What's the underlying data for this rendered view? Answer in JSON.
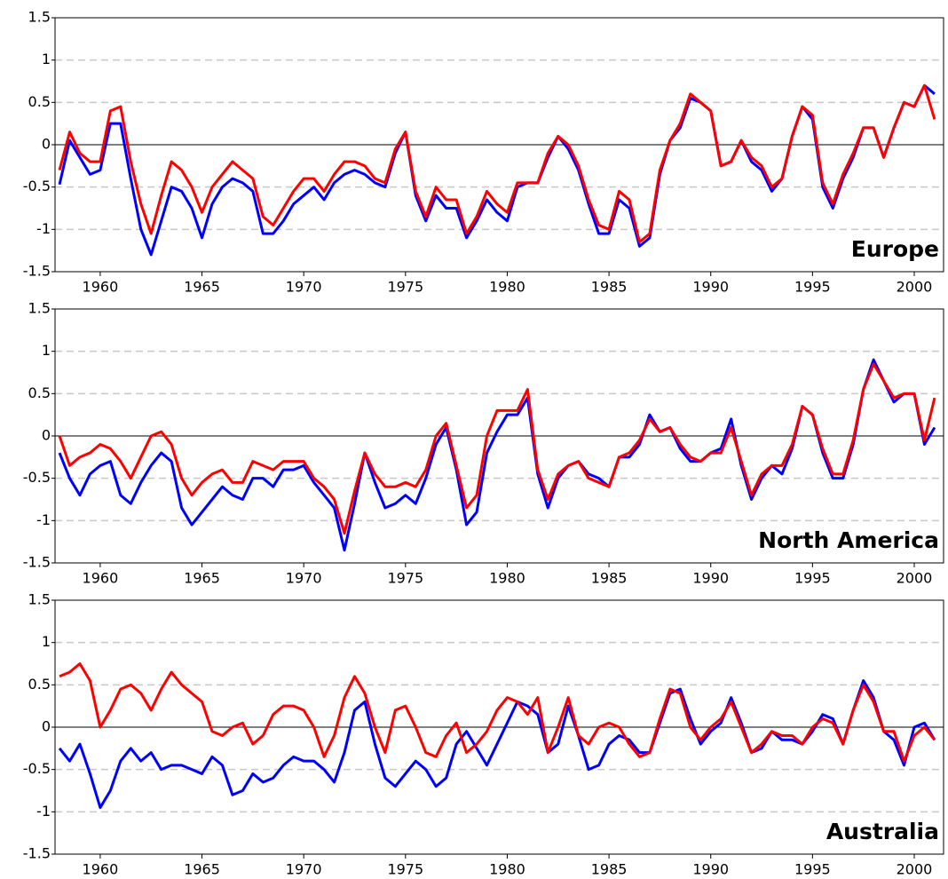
{
  "chart_data": [
    {
      "type": "line",
      "title": "Europe",
      "x": [
        1958,
        1958.5,
        1959,
        1959.5,
        1960,
        1960.5,
        1961,
        1961.5,
        1962,
        1962.5,
        1963,
        1963.5,
        1964,
        1964.5,
        1965,
        1965.5,
        1966,
        1966.5,
        1967,
        1967.5,
        1968,
        1968.5,
        1969,
        1969.5,
        1970,
        1970.5,
        1971,
        1971.5,
        1972,
        1972.5,
        1973,
        1973.5,
        1974,
        1974.5,
        1975,
        1975.5,
        1976,
        1976.5,
        1977,
        1977.5,
        1978,
        1978.5,
        1979,
        1979.5,
        1980,
        1980.5,
        1981,
        1981.5,
        1982,
        1982.5,
        1983,
        1983.5,
        1984,
        1984.5,
        1985,
        1985.5,
        1986,
        1986.5,
        1987,
        1987.5,
        1988,
        1988.5,
        1989,
        1989.5,
        1990,
        1990.5,
        1991,
        1991.5,
        1992,
        1992.5,
        1993,
        1993.5,
        1994,
        1994.5,
        1995,
        1995.5,
        1996,
        1996.5,
        1997,
        1997.5,
        1998,
        1998.5,
        1999,
        1999.5,
        2000,
        2000.5,
        2001
      ],
      "series": [
        {
          "color": "#0000ff",
          "values": [
            -0.47,
            0.05,
            -0.15,
            -0.35,
            -0.3,
            0.25,
            0.25,
            -0.4,
            -1.0,
            -1.3,
            -0.9,
            -0.5,
            -0.55,
            -0.75,
            -1.1,
            -0.7,
            -0.5,
            -0.4,
            -0.45,
            -0.55,
            -1.05,
            -1.05,
            -0.9,
            -0.7,
            -0.6,
            -0.5,
            -0.65,
            -0.45,
            -0.35,
            -0.3,
            -0.35,
            -0.45,
            -0.5,
            -0.1,
            0.15,
            -0.6,
            -0.9,
            -0.6,
            -0.75,
            -0.75,
            -1.1,
            -0.9,
            -0.65,
            -0.8,
            -0.9,
            -0.5,
            -0.45,
            -0.45,
            -0.15,
            0.1,
            -0.05,
            -0.3,
            -0.7,
            -1.05,
            -1.05,
            -0.65,
            -0.75,
            -1.2,
            -1.1,
            -0.35,
            0.05,
            0.2,
            0.55,
            0.5,
            0.4,
            -0.25,
            -0.2,
            0.05,
            -0.2,
            -0.3,
            -0.55,
            -0.4,
            0.1,
            0.45,
            0.3,
            -0.5,
            -0.75,
            -0.4,
            -0.15,
            0.2,
            0.2,
            -0.15,
            0.2,
            0.5,
            0.45,
            0.7,
            0.6
          ]
        },
        {
          "color": "#ff0000",
          "values": [
            -0.3,
            0.15,
            -0.1,
            -0.2,
            -0.2,
            0.4,
            0.45,
            -0.2,
            -0.7,
            -1.05,
            -0.6,
            -0.2,
            -0.3,
            -0.5,
            -0.8,
            -0.5,
            -0.35,
            -0.2,
            -0.3,
            -0.4,
            -0.85,
            -0.95,
            -0.75,
            -0.55,
            -0.4,
            -0.4,
            -0.55,
            -0.35,
            -0.2,
            -0.2,
            -0.25,
            -0.4,
            -0.45,
            -0.05,
            0.15,
            -0.55,
            -0.85,
            -0.5,
            -0.65,
            -0.65,
            -1.05,
            -0.85,
            -0.55,
            -0.7,
            -0.8,
            -0.45,
            -0.45,
            -0.45,
            -0.1,
            0.1,
            0,
            -0.25,
            -0.65,
            -0.95,
            -1.0,
            -0.55,
            -0.65,
            -1.15,
            -1.05,
            -0.3,
            0.05,
            0.25,
            0.6,
            0.5,
            0.4,
            -0.25,
            -0.2,
            0.05,
            -0.15,
            -0.25,
            -0.5,
            -0.4,
            0.1,
            0.45,
            0.35,
            -0.45,
            -0.7,
            -0.35,
            -0.1,
            0.2,
            0.2,
            -0.15,
            0.2,
            0.5,
            0.45,
            0.7,
            0.3
          ]
        }
      ],
      "xlim": [
        1957.78,
        2001.44
      ],
      "xticks": [
        1960,
        1965,
        1970,
        1975,
        1980,
        1985,
        1990,
        1995,
        2000
      ],
      "ylim": [
        -1.5,
        1.5
      ],
      "yticks": [
        -1.5,
        -1,
        -0.5,
        0,
        0.5,
        1,
        1.5
      ],
      "grid": true
    },
    {
      "type": "line",
      "title": "North America",
      "x": [
        1958,
        1958.5,
        1959,
        1959.5,
        1960,
        1960.5,
        1961,
        1961.5,
        1962,
        1962.5,
        1963,
        1963.5,
        1964,
        1964.5,
        1965,
        1965.5,
        1966,
        1966.5,
        1967,
        1967.5,
        1968,
        1968.5,
        1969,
        1969.5,
        1970,
        1970.5,
        1971,
        1971.5,
        1972,
        1972.5,
        1973,
        1973.5,
        1974,
        1974.5,
        1975,
        1975.5,
        1976,
        1976.5,
        1977,
        1977.5,
        1978,
        1978.5,
        1979,
        1979.5,
        1980,
        1980.5,
        1981,
        1981.5,
        1982,
        1982.5,
        1983,
        1983.5,
        1984,
        1984.5,
        1985,
        1985.5,
        1986,
        1986.5,
        1987,
        1987.5,
        1988,
        1988.5,
        1989,
        1989.5,
        1990,
        1990.5,
        1991,
        1991.5,
        1992,
        1992.5,
        1993,
        1993.5,
        1994,
        1994.5,
        1995,
        1995.5,
        1996,
        1996.5,
        1997,
        1997.5,
        1998,
        1998.5,
        1999,
        1999.5,
        2000,
        2000.5,
        2001
      ],
      "series": [
        {
          "color": "#0000ff",
          "values": [
            -0.2,
            -0.5,
            -0.7,
            -0.45,
            -0.35,
            -0.3,
            -0.7,
            -0.8,
            -0.55,
            -0.35,
            -0.2,
            -0.3,
            -0.85,
            -1.05,
            -0.9,
            -0.75,
            -0.6,
            -0.7,
            -0.75,
            -0.5,
            -0.5,
            -0.6,
            -0.4,
            -0.4,
            -0.35,
            -0.55,
            -0.7,
            -0.85,
            -1.35,
            -0.8,
            -0.2,
            -0.55,
            -0.85,
            -0.8,
            -0.7,
            -0.8,
            -0.5,
            -0.1,
            0.1,
            -0.4,
            -1.05,
            -0.9,
            -0.2,
            0.05,
            0.25,
            0.25,
            0.45,
            -0.45,
            -0.85,
            -0.5,
            -0.35,
            -0.3,
            -0.45,
            -0.5,
            -0.6,
            -0.25,
            -0.25,
            -0.1,
            0.25,
            0.05,
            0.1,
            -0.15,
            -0.3,
            -0.3,
            -0.2,
            -0.15,
            0.2,
            -0.35,
            -0.75,
            -0.5,
            -0.35,
            -0.45,
            -0.15,
            0.35,
            0.25,
            -0.2,
            -0.5,
            -0.5,
            -0.1,
            0.55,
            0.9,
            0.65,
            0.4,
            0.5,
            0.5,
            -0.1,
            0.1
          ]
        },
        {
          "color": "#ff0000",
          "values": [
            0.0,
            -0.35,
            -0.25,
            -0.2,
            -0.1,
            -0.15,
            -0.3,
            -0.5,
            -0.25,
            0.0,
            0.05,
            -0.1,
            -0.5,
            -0.7,
            -0.55,
            -0.45,
            -0.4,
            -0.55,
            -0.55,
            -0.3,
            -0.35,
            -0.4,
            -0.3,
            -0.3,
            -0.3,
            -0.5,
            -0.6,
            -0.75,
            -1.15,
            -0.65,
            -0.2,
            -0.45,
            -0.6,
            -0.6,
            -0.55,
            -0.6,
            -0.4,
            0.0,
            0.15,
            -0.35,
            -0.85,
            -0.7,
            0.0,
            0.3,
            0.3,
            0.3,
            0.55,
            -0.4,
            -0.75,
            -0.45,
            -0.35,
            -0.3,
            -0.5,
            -0.55,
            -0.6,
            -0.25,
            -0.2,
            -0.05,
            0.2,
            0.05,
            0.1,
            -0.1,
            -0.25,
            -0.3,
            -0.2,
            -0.2,
            0.1,
            -0.3,
            -0.7,
            -0.45,
            -0.35,
            -0.35,
            -0.1,
            0.35,
            0.25,
            -0.15,
            -0.45,
            -0.45,
            -0.05,
            0.55,
            0.85,
            0.65,
            0.45,
            0.5,
            0.5,
            -0.05,
            0.45
          ]
        }
      ],
      "xlim": [
        1957.78,
        2001.44
      ],
      "xticks": [
        1960,
        1965,
        1970,
        1975,
        1980,
        1985,
        1990,
        1995,
        2000
      ],
      "ylim": [
        -1.5,
        1.5
      ],
      "yticks": [
        -1.5,
        -1,
        -0.5,
        0,
        0.5,
        1,
        1.5
      ],
      "grid": true
    },
    {
      "type": "line",
      "title": "Australia",
      "x": [
        1958,
        1958.5,
        1959,
        1959.5,
        1960,
        1960.5,
        1961,
        1961.5,
        1962,
        1962.5,
        1963,
        1963.5,
        1964,
        1964.5,
        1965,
        1965.5,
        1966,
        1966.5,
        1967,
        1967.5,
        1968,
        1968.5,
        1969,
        1969.5,
        1970,
        1970.5,
        1971,
        1971.5,
        1972,
        1972.5,
        1973,
        1973.5,
        1974,
        1974.5,
        1975,
        1975.5,
        1976,
        1976.5,
        1977,
        1977.5,
        1978,
        1978.5,
        1979,
        1979.5,
        1980,
        1980.5,
        1981,
        1981.5,
        1982,
        1982.5,
        1983,
        1983.5,
        1984,
        1984.5,
        1985,
        1985.5,
        1986,
        1986.5,
        1987,
        1987.5,
        1988,
        1988.5,
        1989,
        1989.5,
        1990,
        1990.5,
        1991,
        1991.5,
        1992,
        1992.5,
        1993,
        1993.5,
        1994,
        1994.5,
        1995,
        1995.5,
        1996,
        1996.5,
        1997,
        1997.5,
        1998,
        1998.5,
        1999,
        1999.5,
        2000,
        2000.5,
        2001
      ],
      "series": [
        {
          "color": "#0000ff",
          "values": [
            -0.25,
            -0.4,
            -0.2,
            -0.55,
            -0.95,
            -0.75,
            -0.4,
            -0.25,
            -0.4,
            -0.3,
            -0.5,
            -0.45,
            -0.45,
            -0.5,
            -0.55,
            -0.35,
            -0.45,
            -0.8,
            -0.75,
            -0.55,
            -0.65,
            -0.6,
            -0.45,
            -0.35,
            -0.4,
            -0.4,
            -0.5,
            -0.65,
            -0.3,
            0.2,
            0.3,
            -0.2,
            -0.6,
            -0.7,
            -0.55,
            -0.4,
            -0.5,
            -0.7,
            -0.6,
            -0.2,
            -0.05,
            -0.25,
            -0.45,
            -0.2,
            0.05,
            0.3,
            0.25,
            0.15,
            -0.3,
            -0.2,
            0.25,
            -0.1,
            -0.5,
            -0.45,
            -0.2,
            -0.1,
            -0.15,
            -0.3,
            -0.3,
            0.05,
            0.4,
            0.45,
            0.1,
            -0.2,
            -0.05,
            0.05,
            0.35,
            0.05,
            -0.3,
            -0.25,
            -0.05,
            -0.15,
            -0.15,
            -0.2,
            -0.05,
            0.15,
            0.1,
            -0.2,
            0.2,
            0.55,
            0.35,
            -0.05,
            -0.15,
            -0.45,
            0.0,
            0.05,
            -0.15
          ]
        },
        {
          "color": "#ff0000",
          "values": [
            0.6,
            0.65,
            0.75,
            0.55,
            0.0,
            0.2,
            0.45,
            0.5,
            0.4,
            0.2,
            0.45,
            0.65,
            0.5,
            0.4,
            0.3,
            -0.05,
            -0.1,
            0.0,
            0.05,
            -0.2,
            -0.1,
            0.15,
            0.25,
            0.25,
            0.2,
            0.0,
            -0.35,
            -0.1,
            0.35,
            0.6,
            0.4,
            0.0,
            -0.3,
            0.2,
            0.25,
            0.0,
            -0.3,
            -0.35,
            -0.1,
            0.05,
            -0.3,
            -0.2,
            -0.05,
            0.2,
            0.35,
            0.3,
            0.15,
            0.35,
            -0.3,
            0.0,
            0.35,
            -0.1,
            -0.2,
            0.0,
            0.05,
            0.0,
            -0.2,
            -0.35,
            -0.3,
            0.1,
            0.45,
            0.4,
            0.0,
            -0.15,
            0.0,
            0.1,
            0.3,
            0.0,
            -0.3,
            -0.2,
            -0.05,
            -0.1,
            -0.1,
            -0.2,
            0.0,
            0.1,
            0.05,
            -0.2,
            0.2,
            0.5,
            0.3,
            -0.05,
            -0.05,
            -0.4,
            -0.1,
            0.0,
            -0.15
          ]
        }
      ],
      "xlim": [
        1957.78,
        2001.44
      ],
      "xticks": [
        1960,
        1965,
        1970,
        1975,
        1980,
        1985,
        1990,
        1995,
        2000
      ],
      "ylim": [
        -1.5,
        1.5
      ],
      "yticks": [
        -1.5,
        -1,
        -0.5,
        0,
        0.5,
        1,
        1.5
      ],
      "grid": true
    }
  ]
}
